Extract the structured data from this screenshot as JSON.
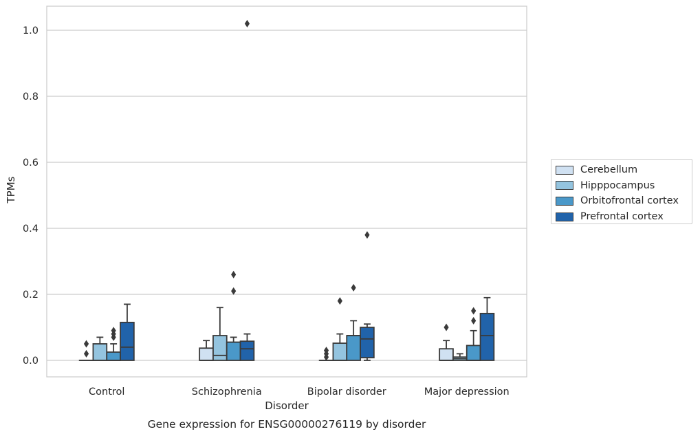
{
  "chart_data": {
    "type": "box",
    "title": "Gene expression for ENSG00000276119 by disorder",
    "xlabel": "Disorder",
    "ylabel": "TPMs",
    "ylim": [
      -0.05,
      1.07
    ],
    "yticks": [
      "0.0",
      "0.2",
      "0.4",
      "0.6",
      "0.8",
      "1.0"
    ],
    "grid": true,
    "legend_position": "right",
    "categories": [
      "Control",
      "Schizophrenia",
      "Bipolar disorder",
      "Major depression"
    ],
    "series": [
      {
        "name": "Cerebellum",
        "color": "#d0e1f2",
        "boxes": [
          {
            "whislo": 0.0,
            "q1": 0.0,
            "med": 0.0,
            "q3": 0.0,
            "whishi": 0.0,
            "fliers": [
              0.02,
              0.05
            ]
          },
          {
            "whislo": 0.0,
            "q1": 0.0,
            "med": 0.0,
            "q3": 0.037,
            "whishi": 0.06,
            "fliers": []
          },
          {
            "whislo": 0.0,
            "q1": 0.0,
            "med": 0.0,
            "q3": 0.0,
            "whishi": 0.0,
            "fliers": [
              0.01,
              0.02,
              0.03
            ]
          },
          {
            "whislo": 0.0,
            "q1": 0.0,
            "med": 0.0,
            "q3": 0.035,
            "whishi": 0.06,
            "fliers": [
              0.1
            ]
          }
        ]
      },
      {
        "name": "Hipppocampus",
        "color": "#94c4df",
        "boxes": [
          {
            "whislo": 0.0,
            "q1": 0.0,
            "med": 0.0,
            "q3": 0.05,
            "whishi": 0.07,
            "fliers": []
          },
          {
            "whislo": 0.0,
            "q1": 0.0,
            "med": 0.015,
            "q3": 0.075,
            "whishi": 0.16,
            "fliers": []
          },
          {
            "whislo": 0.0,
            "q1": 0.0,
            "med": 0.0,
            "q3": 0.052,
            "whishi": 0.08,
            "fliers": [
              0.18
            ]
          },
          {
            "whislo": 0.0,
            "q1": 0.0,
            "med": 0.005,
            "q3": 0.01,
            "whishi": 0.02,
            "fliers": []
          }
        ]
      },
      {
        "name": "Orbitofrontal cortex",
        "color": "#4a98c9",
        "boxes": [
          {
            "whislo": 0.0,
            "q1": 0.0,
            "med": 0.0,
            "q3": 0.025,
            "whishi": 0.05,
            "fliers": [
              0.07,
              0.08,
              0.09
            ]
          },
          {
            "whislo": 0.0,
            "q1": 0.0,
            "med": 0.055,
            "q3": 0.055,
            "whishi": 0.07,
            "fliers": [
              0.21,
              0.26
            ]
          },
          {
            "whislo": 0.0,
            "q1": 0.0,
            "med": 0.075,
            "q3": 0.075,
            "whishi": 0.12,
            "fliers": [
              0.22
            ]
          },
          {
            "whislo": 0.0,
            "q1": 0.0,
            "med": 0.0,
            "q3": 0.045,
            "whishi": 0.09,
            "fliers": [
              0.12,
              0.15
            ]
          }
        ]
      },
      {
        "name": "Prefrontal cortex",
        "color": "#2163aa",
        "boxes": [
          {
            "whislo": 0.0,
            "q1": 0.0,
            "med": 0.04,
            "q3": 0.115,
            "whishi": 0.17,
            "fliers": []
          },
          {
            "whislo": 0.0,
            "q1": 0.0,
            "med": 0.035,
            "q3": 0.058,
            "whishi": 0.08,
            "fliers": [
              1.02
            ]
          },
          {
            "whislo": 0.0,
            "q1": 0.008,
            "med": 0.065,
            "q3": 0.1,
            "whishi": 0.11,
            "fliers": [
              0.38
            ]
          },
          {
            "whislo": 0.0,
            "q1": 0.0,
            "med": 0.075,
            "q3": 0.142,
            "whishi": 0.19,
            "fliers": []
          }
        ]
      }
    ]
  }
}
